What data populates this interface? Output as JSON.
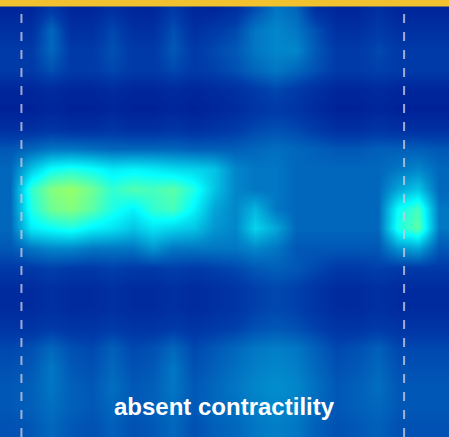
{
  "chart_data": {
    "type": "heatmap",
    "annotations": [
      "absent contractility"
    ],
    "zlim": [
      0,
      100
    ],
    "tick_labels": false,
    "z": [
      [
        8,
        8,
        12,
        8,
        8,
        10,
        8,
        8,
        12,
        8,
        8,
        10,
        15,
        20,
        18,
        10,
        8,
        8,
        10,
        8,
        8,
        8
      ],
      [
        10,
        10,
        18,
        10,
        10,
        14,
        10,
        10,
        15,
        10,
        12,
        14,
        20,
        22,
        20,
        15,
        10,
        10,
        12,
        10,
        10,
        10
      ],
      [
        12,
        12,
        18,
        12,
        12,
        15,
        12,
        12,
        16,
        12,
        14,
        16,
        20,
        22,
        22,
        16,
        12,
        12,
        14,
        12,
        12,
        12
      ],
      [
        12,
        12,
        15,
        12,
        12,
        14,
        12,
        12,
        14,
        12,
        13,
        15,
        18,
        20,
        18,
        15,
        12,
        12,
        13,
        12,
        12,
        12
      ],
      [
        8,
        8,
        9,
        8,
        8,
        9,
        8,
        8,
        9,
        8,
        9,
        10,
        12,
        14,
        12,
        10,
        8,
        8,
        9,
        8,
        8,
        8
      ],
      [
        7,
        7,
        8,
        7,
        7,
        8,
        7,
        7,
        8,
        7,
        8,
        9,
        11,
        12,
        11,
        9,
        7,
        7,
        8,
        7,
        7,
        7
      ],
      [
        10,
        10,
        11,
        10,
        10,
        11,
        10,
        10,
        11,
        10,
        11,
        12,
        14,
        15,
        14,
        12,
        10,
        10,
        11,
        10,
        10,
        10
      ],
      [
        16,
        18,
        20,
        20,
        19,
        18,
        18,
        18,
        18,
        17,
        17,
        17,
        18,
        19,
        18,
        17,
        16,
        16,
        17,
        17,
        17,
        16
      ],
      [
        18,
        30,
        38,
        40,
        38,
        35,
        36,
        35,
        33,
        32,
        30,
        22,
        20,
        20,
        18,
        18,
        18,
        18,
        18,
        20,
        22,
        18
      ],
      [
        18,
        42,
        50,
        52,
        48,
        42,
        45,
        44,
        46,
        40,
        30,
        22,
        20,
        20,
        18,
        18,
        18,
        18,
        18,
        26,
        30,
        18
      ],
      [
        18,
        40,
        48,
        50,
        46,
        40,
        36,
        42,
        44,
        36,
        26,
        22,
        28,
        20,
        18,
        18,
        18,
        18,
        18,
        38,
        44,
        20
      ],
      [
        18,
        35,
        38,
        40,
        36,
        34,
        30,
        34,
        32,
        30,
        24,
        22,
        32,
        26,
        18,
        18,
        18,
        18,
        18,
        40,
        46,
        20
      ],
      [
        16,
        20,
        22,
        22,
        20,
        20,
        20,
        24,
        20,
        20,
        20,
        20,
        22,
        20,
        16,
        16,
        16,
        16,
        16,
        24,
        26,
        16
      ],
      [
        12,
        12,
        13,
        12,
        12,
        13,
        12,
        12,
        13,
        12,
        13,
        14,
        16,
        17,
        16,
        14,
        12,
        12,
        13,
        12,
        12,
        12
      ],
      [
        9,
        9,
        10,
        9,
        9,
        10,
        9,
        9,
        10,
        9,
        10,
        11,
        13,
        14,
        13,
        11,
        9,
        9,
        10,
        9,
        9,
        9
      ],
      [
        9,
        9,
        10,
        9,
        9,
        10,
        9,
        9,
        10,
        9,
        10,
        11,
        13,
        14,
        13,
        11,
        9,
        9,
        10,
        9,
        9,
        9
      ],
      [
        11,
        11,
        12,
        11,
        11,
        12,
        11,
        11,
        12,
        11,
        12,
        13,
        15,
        16,
        15,
        13,
        11,
        11,
        12,
        11,
        11,
        11
      ],
      [
        14,
        15,
        18,
        15,
        14,
        17,
        14,
        15,
        18,
        14,
        16,
        18,
        20,
        21,
        20,
        17,
        14,
        15,
        17,
        14,
        14,
        14
      ],
      [
        15,
        16,
        20,
        16,
        15,
        18,
        15,
        16,
        20,
        15,
        17,
        19,
        21,
        22,
        21,
        18,
        15,
        16,
        18,
        15,
        15,
        15
      ],
      [
        16,
        17,
        20,
        17,
        16,
        19,
        16,
        17,
        20,
        16,
        18,
        20,
        22,
        23,
        22,
        19,
        16,
        17,
        19,
        16,
        16,
        16
      ],
      [
        16,
        17,
        19,
        17,
        16,
        18,
        16,
        17,
        19,
        16,
        18,
        19,
        21,
        22,
        21,
        18,
        16,
        17,
        18,
        16,
        16,
        16
      ],
      [
        15,
        16,
        18,
        16,
        15,
        17,
        15,
        16,
        18,
        15,
        17,
        18,
        20,
        21,
        20,
        17,
        15,
        16,
        17,
        15,
        15,
        15
      ]
    ]
  }
}
